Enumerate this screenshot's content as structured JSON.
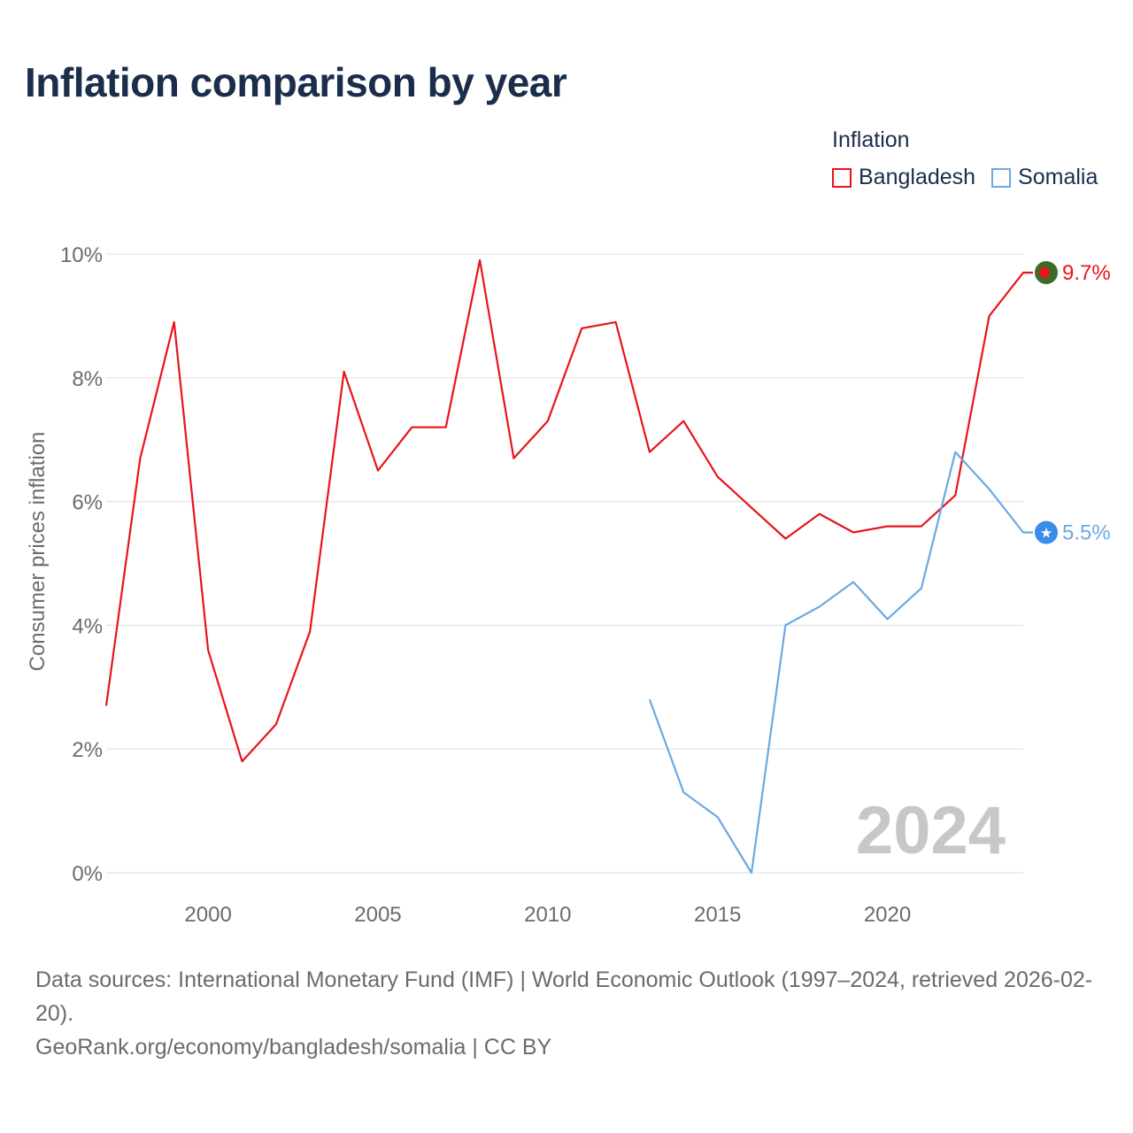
{
  "title": "Inflation comparison by year",
  "legend": {
    "title": "Inflation",
    "items": [
      {
        "label": "Bangladesh",
        "color": "#e8141b"
      },
      {
        "label": "Somalia",
        "color": "#6aa9e3"
      }
    ]
  },
  "watermark_year": "2024",
  "footer": {
    "sources": "Data sources: International Monetary Fund (IMF) | World Economic Outlook (1997–2024, retrieved 2026-02-20).",
    "url": "GeoRank.org/economy/bangladesh/somalia | CC BY"
  },
  "chart_data": {
    "type": "line",
    "title": "Inflation comparison by year",
    "xlabel": "",
    "ylabel": "Consumer prices inflation",
    "xlim": [
      1997,
      2024
    ],
    "ylim": [
      0,
      10
    ],
    "x_ticks": [
      2000,
      2005,
      2010,
      2015,
      2020
    ],
    "y_ticks": [
      0,
      2,
      4,
      6,
      8,
      10
    ],
    "y_tick_labels": [
      "0%",
      "2%",
      "4%",
      "6%",
      "8%",
      "10%"
    ],
    "grid": true,
    "legend_position": "top-right",
    "series": [
      {
        "name": "Bangladesh",
        "color": "#e8141b",
        "end_label": "9.7%",
        "end_marker": "bangladesh-flag",
        "x": [
          1997,
          1998,
          1999,
          2000,
          2001,
          2002,
          2003,
          2004,
          2005,
          2006,
          2007,
          2008,
          2009,
          2010,
          2011,
          2012,
          2013,
          2014,
          2015,
          2016,
          2017,
          2018,
          2019,
          2020,
          2021,
          2022,
          2023,
          2024
        ],
        "values": [
          2.7,
          6.7,
          8.9,
          3.6,
          1.8,
          2.4,
          3.9,
          8.1,
          6.5,
          7.2,
          7.2,
          9.9,
          6.7,
          7.3,
          8.8,
          8.9,
          6.8,
          7.3,
          6.4,
          5.9,
          5.4,
          5.8,
          5.5,
          5.6,
          5.6,
          6.1,
          9.0,
          9.7
        ]
      },
      {
        "name": "Somalia",
        "color": "#6aa9e3",
        "end_label": "5.5%",
        "end_marker": "somalia-flag",
        "x": [
          2013,
          2014,
          2015,
          2016,
          2017,
          2018,
          2019,
          2020,
          2021,
          2022,
          2023,
          2024
        ],
        "values": [
          2.8,
          1.3,
          0.9,
          0.0,
          4.0,
          4.3,
          4.7,
          4.1,
          4.6,
          6.8,
          6.2,
          5.5
        ]
      }
    ]
  }
}
